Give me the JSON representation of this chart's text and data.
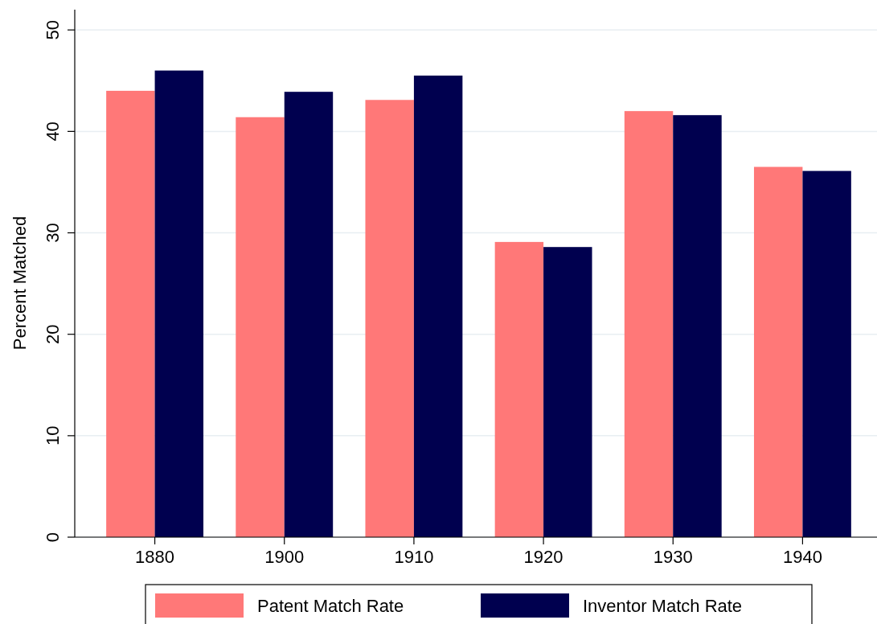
{
  "chart_data": {
    "type": "bar",
    "ylabel": "Percent Matched",
    "categories": [
      "1880",
      "1900",
      "1910",
      "1920",
      "1930",
      "1940"
    ],
    "series": [
      {
        "name": "Patent Match Rate",
        "color": "#ff7878",
        "values": [
          44.0,
          41.4,
          43.1,
          29.1,
          42.0,
          36.5
        ]
      },
      {
        "name": "Inventor Match Rate",
        "color": "#00004f",
        "values": [
          46.0,
          43.9,
          45.5,
          28.6,
          41.6,
          36.1
        ]
      }
    ],
    "ylim": [
      0,
      52
    ],
    "yticks": [
      0,
      10,
      20,
      30,
      40,
      50
    ],
    "grid": "y",
    "legend": "bottom"
  }
}
